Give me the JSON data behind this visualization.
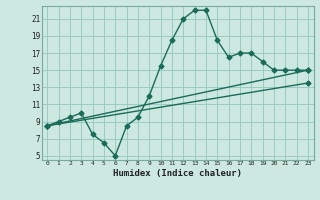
{
  "xlabel": "Humidex (Indice chaleur)",
  "xlim": [
    -0.5,
    23.5
  ],
  "ylim": [
    4.5,
    22.5
  ],
  "xticks": [
    0,
    1,
    2,
    3,
    4,
    5,
    6,
    7,
    8,
    9,
    10,
    11,
    12,
    13,
    14,
    15,
    16,
    17,
    18,
    19,
    20,
    21,
    22,
    23
  ],
  "yticks": [
    5,
    7,
    9,
    11,
    13,
    15,
    17,
    19,
    21
  ],
  "bg_color": "#cce8e0",
  "grid_color": "#99ccc0",
  "line_color": "#1a6b5a",
  "line1_x": [
    0,
    1,
    2,
    3,
    4,
    5,
    6,
    7,
    8,
    9,
    10,
    11,
    12,
    13,
    14,
    15,
    16,
    17,
    18,
    19,
    20,
    21,
    22,
    23
  ],
  "line1_y": [
    8.5,
    9.0,
    9.5,
    10.0,
    7.5,
    6.5,
    5.0,
    8.5,
    9.5,
    12.0,
    15.5,
    18.5,
    21.0,
    22.0,
    22.0,
    18.5,
    16.5,
    17.0,
    17.0,
    16.0,
    15.0,
    15.0,
    15.0,
    15.0
  ],
  "line2_x": [
    0,
    23
  ],
  "line2_y": [
    8.5,
    15.0
  ],
  "line3_x": [
    0,
    23
  ],
  "line3_y": [
    8.5,
    13.5
  ],
  "marker": "D",
  "markersize": 2.5,
  "linewidth": 1.0
}
